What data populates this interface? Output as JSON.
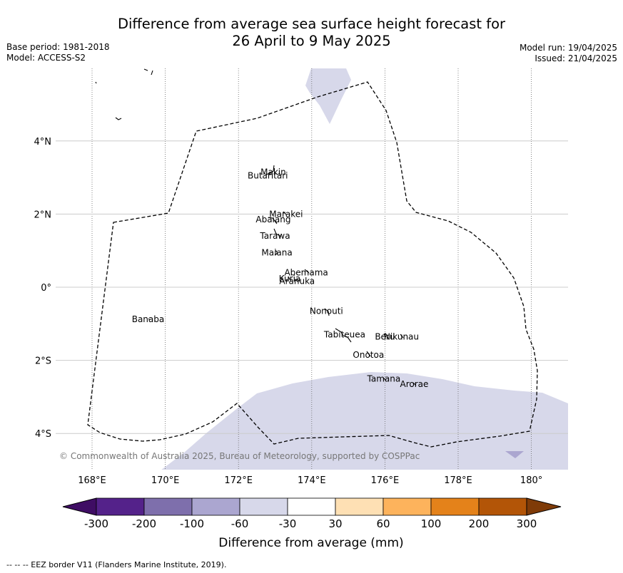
{
  "title": {
    "line1": "Difference from average sea surface height forecast for",
    "line2": "26 April to 9 May 2025"
  },
  "meta_left": {
    "base_period": "Base period: 1981-2018",
    "model": "Model: ACCESS-S2"
  },
  "meta_right": {
    "model_run": "Model run: 19/04/2025",
    "issued": "Issued: 21/04/2025"
  },
  "map": {
    "lon_range": [
      167,
      181
    ],
    "lat_range": [
      -5,
      6
    ],
    "lon_ticks": [
      {
        "value": 168,
        "label": "168°E"
      },
      {
        "value": 170,
        "label": "170°E"
      },
      {
        "value": 172,
        "label": "172°E"
      },
      {
        "value": 174,
        "label": "174°E"
      },
      {
        "value": 176,
        "label": "176°E"
      },
      {
        "value": 178,
        "label": "178°E"
      },
      {
        "value": 180,
        "label": "180°"
      }
    ],
    "lat_ticks": [
      {
        "value": 4,
        "label": "4°N"
      },
      {
        "value": 2,
        "label": "2°N"
      },
      {
        "value": 0,
        "label": "0°"
      },
      {
        "value": -2,
        "label": "2°S"
      },
      {
        "value": -4,
        "label": "4°S"
      }
    ],
    "islands": [
      {
        "name": "Makin",
        "lon": 172.95,
        "lat": 3.15
      },
      {
        "name": "Butaritari",
        "lon": 172.8,
        "lat": 3.05
      },
      {
        "name": "Marakei",
        "lon": 173.3,
        "lat": 2.0
      },
      {
        "name": "Abaiang",
        "lon": 172.95,
        "lat": 1.85
      },
      {
        "name": "Tarawa",
        "lon": 173.0,
        "lat": 1.4
      },
      {
        "name": "Maiana",
        "lon": 173.05,
        "lat": 0.95
      },
      {
        "name": "Abemama",
        "lon": 173.85,
        "lat": 0.4
      },
      {
        "name": "Kuria",
        "lon": 173.4,
        "lat": 0.23
      },
      {
        "name": "Aranuka",
        "lon": 173.6,
        "lat": 0.17
      },
      {
        "name": "Nonouti",
        "lon": 174.4,
        "lat": -0.65
      },
      {
        "name": "Tabiteuea",
        "lon": 174.9,
        "lat": -1.3
      },
      {
        "name": "Beru",
        "lon": 176.0,
        "lat": -1.35
      },
      {
        "name": "Nikunau",
        "lon": 176.45,
        "lat": -1.35
      },
      {
        "name": "Onotoa",
        "lon": 175.55,
        "lat": -1.85
      },
      {
        "name": "Tamana",
        "lon": 175.97,
        "lat": -2.5
      },
      {
        "name": "Arorae",
        "lon": 176.8,
        "lat": -2.65
      },
      {
        "name": "Banaba",
        "lon": 169.53,
        "lat": -0.88
      }
    ],
    "copyright": "© Commonwealth of Australia 2025, Bureau of Meteorology, supported by COSPPac"
  },
  "legend": {
    "ticks": [
      "-300",
      "-200",
      "-100",
      "-60",
      "-30",
      "30",
      "60",
      "100",
      "200",
      "300"
    ],
    "colors": [
      "#3f0d64",
      "#54228a",
      "#7e6fac",
      "#aba6d0",
      "#d7d8ea",
      "#ffffff",
      "#fee0b4",
      "#fdb35c",
      "#e4821a",
      "#b35507",
      "#7f3b08"
    ],
    "label": "Difference from average (mm)"
  },
  "footnote": "--  --  -- EEZ border V11 (Flanders Marine Institute, 2019)."
}
